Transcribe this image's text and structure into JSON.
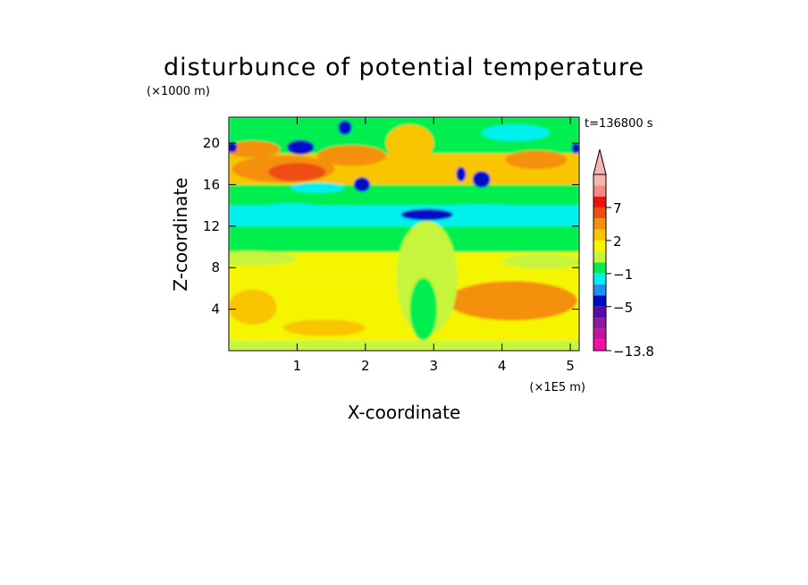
{
  "chart_data": {
    "type": "heatmap",
    "title": "disturbunce of potential temperature",
    "ylabel": "Z-coordinate",
    "xlabel": "X-coordinate",
    "y_unit": "(×1000 m)",
    "x_unit": "(×1E5 m)",
    "time_label": "t=136800 s",
    "xlim": [
      0,
      5.13
    ],
    "ylim": [
      0,
      22.5
    ],
    "x_ticks": [
      1,
      2,
      3,
      4,
      5
    ],
    "y_ticks": [
      4,
      8,
      12,
      16,
      20
    ],
    "colorbar": {
      "extend": "max",
      "labels": [
        {
          "value": 7,
          "text": "7"
        },
        {
          "value": 2,
          "text": "2"
        },
        {
          "value": -1,
          "text": "−1"
        },
        {
          "value": -5,
          "text": "−5"
        },
        {
          "value": -13.8,
          "text": "−13.8"
        }
      ],
      "levels_top_to_bottom": [
        {
          "color": "#f6b6b0"
        },
        {
          "color": "#f58a82"
        },
        {
          "color": "#e8140e"
        },
        {
          "color": "#f04d12"
        },
        {
          "color": "#f59008"
        },
        {
          "color": "#f9c400"
        },
        {
          "color": "#f5f500"
        },
        {
          "color": "#c6f53a"
        },
        {
          "color": "#00ef4f"
        },
        {
          "color": "#00f0ee"
        },
        {
          "color": "#1e8ff0"
        },
        {
          "color": "#0009c6"
        },
        {
          "color": "#5a0aa8"
        },
        {
          "color": "#8e1a9c"
        },
        {
          "color": "#c0149e"
        },
        {
          "color": "#f20fa6"
        }
      ]
    },
    "field_bands": [
      {
        "z": [
          0,
          1
        ],
        "level": "#c6f53a"
      },
      {
        "z": [
          1,
          7
        ],
        "level": "#f5f500"
      },
      {
        "z": [
          7,
          9.5
        ],
        "level": "#f5f500"
      },
      {
        "z": [
          9.5,
          12
        ],
        "level": "#00ef4f"
      },
      {
        "z": [
          12,
          14
        ],
        "level": "#00f0ee"
      },
      {
        "z": [
          14,
          16
        ],
        "level": "#00ef4f"
      },
      {
        "z": [
          16,
          19
        ],
        "level": "#f9c400"
      },
      {
        "z": [
          19,
          22.5
        ],
        "level": "#00ef4f"
      }
    ],
    "field_features": [
      {
        "x": 0.35,
        "z": 4.2,
        "rx": 0.35,
        "rz": 1.7,
        "level": "#f9c400"
      },
      {
        "x": 1.4,
        "z": 2.2,
        "rx": 0.6,
        "rz": 0.8,
        "level": "#f9c400"
      },
      {
        "x": 4.15,
        "z": 4.8,
        "rx": 0.95,
        "rz": 1.9,
        "level": "#f59008"
      },
      {
        "x": 4.3,
        "z": 5.2,
        "rx": 0.45,
        "rz": 0.9,
        "level": "#f59008"
      },
      {
        "x": 2.9,
        "z": 7.0,
        "rx": 0.45,
        "rz": 5.5,
        "level": "#c6f53a"
      },
      {
        "x": 2.85,
        "z": 4.0,
        "rx": 0.2,
        "rz": 3.0,
        "level": "#00ef4f"
      },
      {
        "x": 0.3,
        "z": 8.9,
        "rx": 0.7,
        "rz": 0.7,
        "level": "#c6f53a"
      },
      {
        "x": 4.6,
        "z": 8.6,
        "rx": 0.6,
        "rz": 0.7,
        "level": "#c6f53a"
      },
      {
        "x": 3.7,
        "z": 13.2,
        "rx": 1.1,
        "rz": 0.9,
        "level": "#00f0ee"
      },
      {
        "x": 0.9,
        "z": 13.3,
        "rx": 0.6,
        "rz": 0.9,
        "level": "#00f0ee"
      },
      {
        "x": 2.9,
        "z": 13.1,
        "rx": 0.38,
        "rz": 0.55,
        "level": "#0009c6"
      },
      {
        "x": 0.8,
        "z": 17.5,
        "rx": 0.75,
        "rz": 1.3,
        "level": "#f59008"
      },
      {
        "x": 1.0,
        "z": 17.2,
        "rx": 0.42,
        "rz": 0.9,
        "level": "#f04d12"
      },
      {
        "x": 0.35,
        "z": 19.4,
        "rx": 0.4,
        "rz": 0.8,
        "level": "#f59008"
      },
      {
        "x": 1.8,
        "z": 18.8,
        "rx": 0.5,
        "rz": 1.0,
        "level": "#f59008"
      },
      {
        "x": 4.5,
        "z": 18.4,
        "rx": 0.45,
        "rz": 0.9,
        "level": "#f59008"
      },
      {
        "x": 2.65,
        "z": 20.0,
        "rx": 0.35,
        "rz": 1.8,
        "level": "#f9c400"
      },
      {
        "x": 1.05,
        "z": 19.6,
        "rx": 0.2,
        "rz": 0.7,
        "level": "#0009c6"
      },
      {
        "x": 1.7,
        "z": 21.5,
        "rx": 0.1,
        "rz": 0.7,
        "level": "#0009c6"
      },
      {
        "x": 3.7,
        "z": 16.5,
        "rx": 0.13,
        "rz": 0.8,
        "level": "#0009c6"
      },
      {
        "x": 3.4,
        "z": 17.0,
        "rx": 0.07,
        "rz": 0.7,
        "level": "#0009c6"
      },
      {
        "x": 1.95,
        "z": 16.0,
        "rx": 0.12,
        "rz": 0.7,
        "level": "#0009c6"
      },
      {
        "x": 0.05,
        "z": 19.6,
        "rx": 0.07,
        "rz": 0.5,
        "level": "#0009c6"
      },
      {
        "x": 4.2,
        "z": 21.0,
        "rx": 0.5,
        "rz": 0.8,
        "level": "#00f0ee"
      },
      {
        "x": 1.3,
        "z": 15.7,
        "rx": 0.4,
        "rz": 0.5,
        "level": "#00f0ee"
      },
      {
        "x": 5.08,
        "z": 19.5,
        "rx": 0.06,
        "rz": 0.5,
        "level": "#0009c6"
      }
    ]
  }
}
